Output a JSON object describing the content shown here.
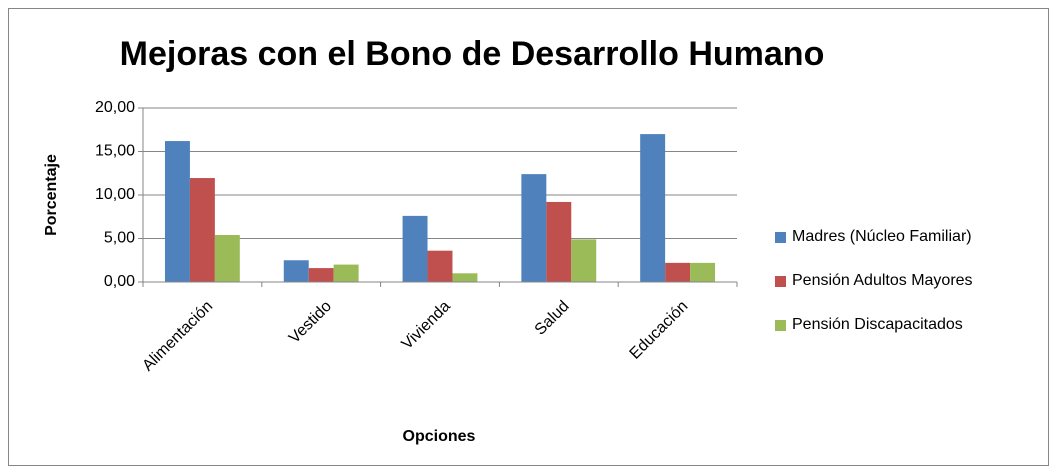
{
  "chart_data": {
    "type": "bar",
    "title": "Mejoras con el  Bono de Desarrollo Humano",
    "y_label": "Porcentaje",
    "x_label": "Opciones",
    "categories": [
      "Alimentación",
      "Vestido",
      "Vivienda",
      "Salud",
      "Educación"
    ],
    "series": [
      {
        "name": "Madres (Núcleo Familiar)",
        "color": "#4f81bd",
        "values": [
          16.2,
          2.5,
          7.6,
          12.4,
          17.0
        ]
      },
      {
        "name": "Pensión Adultos Mayores",
        "color": "#c0504d",
        "values": [
          11.95,
          1.6,
          3.6,
          9.2,
          2.2
        ]
      },
      {
        "name": "Pensión Discapacitados",
        "color": "#9bbb59",
        "values": [
          5.4,
          2.0,
          1.0,
          4.9,
          2.2
        ]
      }
    ],
    "ylim": [
      0,
      20
    ],
    "yticks": [
      {
        "value": 0,
        "label": "0,00"
      },
      {
        "value": 5,
        "label": "5,00"
      },
      {
        "value": 10,
        "label": "10,00"
      },
      {
        "value": 15,
        "label": "15,00"
      },
      {
        "value": 20,
        "label": "20,00"
      }
    ],
    "grid": true,
    "legend": "right"
  }
}
